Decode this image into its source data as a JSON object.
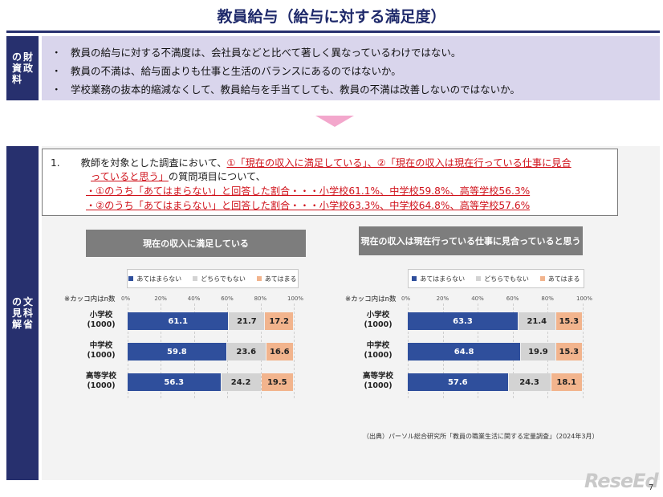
{
  "title": "教員給与（給与に対する満足度）",
  "zaimu": {
    "label_cols": [
      "財政",
      "の資料"
    ],
    "bullet_mark": "・",
    "bullets": [
      "教員の給与に対する不満度は、会社員などと比べて著しく異なっているわけではない。",
      "教員の不満は、給与面よりも仕事と生活のバランスにあるのではないか。",
      "学校業務の抜本的縮減なくして、教員給与を手当てしても、教員の不満は改善しないのではないか。"
    ]
  },
  "monka": {
    "label_cols": [
      "文科省",
      "の見解"
    ],
    "num": "1.",
    "l1_a": "教師を対象とした調査において、",
    "l1_b": "①「現在の収入に満足している」、②「現在の収入は現在行っている仕事に見合",
    "l2_a": "っていると思う」",
    "l2_b": "の質問項目について、",
    "l3": "・①のうち「あてはまらない」と回答した割合・・・小学校61.1%、中学校59.8%、高等学校56.3%",
    "l4": "・②のうち「あてはまらない」と回答した割合・・・小学校63.3%、中学校64.8%、高等学校57.6%"
  },
  "note": "※カッコ内はn数",
  "source": "（出典）パーソル総合研究所「教員の職業生活に関する定量調査」（2024年3月）",
  "logo_text": "ReseEd",
  "page_number": "7",
  "colors": {
    "navy": "#2f4f9c",
    "gray": "#d3d3d3",
    "orange": "#f2b48d"
  },
  "chart_data": [
    {
      "type": "bar",
      "stacked": true,
      "orientation": "horizontal",
      "title": "現在の収入に満足している",
      "categories": [
        "小学校",
        "中学校",
        "高等学校"
      ],
      "category_n": [
        "(1000)",
        "(1000)",
        "(1000)"
      ],
      "ticks": [
        "0%",
        "20%",
        "40%",
        "60%",
        "80%",
        "100%"
      ],
      "xlim": [
        0,
        100
      ],
      "legend_position": "top",
      "series": [
        {
          "name": "あてはまらない",
          "values": [
            61.1,
            59.8,
            56.3
          ]
        },
        {
          "name": "どちらでもない",
          "values": [
            21.7,
            23.6,
            24.2
          ]
        },
        {
          "name": "あてはまる",
          "values": [
            17.2,
            16.6,
            19.5
          ]
        }
      ]
    },
    {
      "type": "bar",
      "stacked": true,
      "orientation": "horizontal",
      "title": "現在の収入は現在行っている仕事に見合っていると思う",
      "categories": [
        "小学校",
        "中学校",
        "高等学校"
      ],
      "category_n": [
        "(1000)",
        "(1000)",
        "(1000)"
      ],
      "ticks": [
        "0%",
        "20%",
        "40%",
        "60%",
        "80%",
        "100%"
      ],
      "xlim": [
        0,
        100
      ],
      "legend_position": "top",
      "series": [
        {
          "name": "あてはまらない",
          "values": [
            63.3,
            64.8,
            57.6
          ]
        },
        {
          "name": "どちらでもない",
          "values": [
            21.4,
            19.9,
            24.3
          ]
        },
        {
          "name": "あてはまる",
          "values": [
            15.3,
            15.3,
            18.1
          ]
        }
      ]
    }
  ]
}
